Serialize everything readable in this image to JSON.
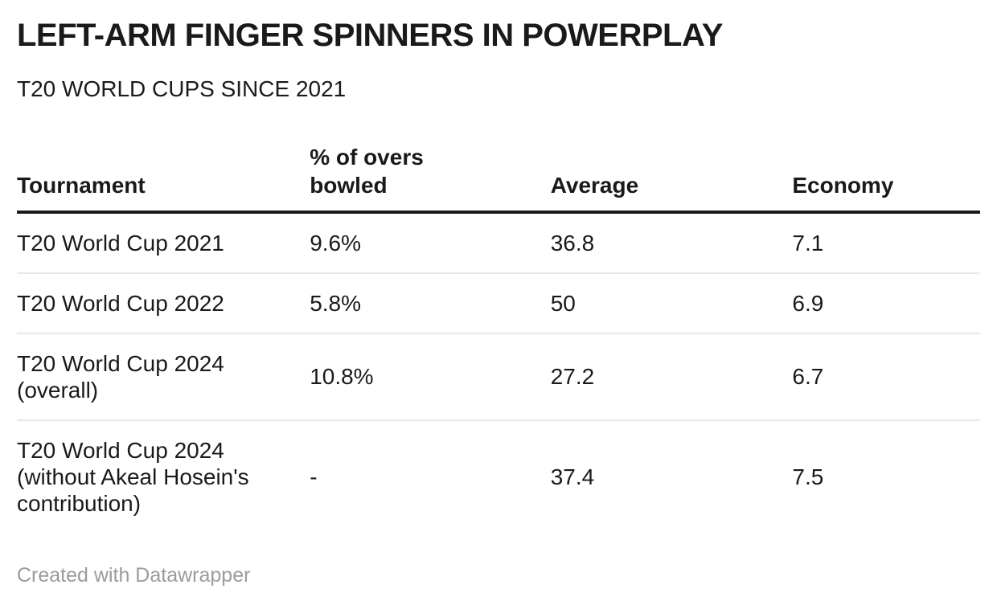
{
  "header": {
    "title": "LEFT-ARM FINGER SPINNERS IN POWERPLAY",
    "subtitle": "T20 WORLD CUPS SINCE 2021"
  },
  "chart_data": {
    "type": "table",
    "title": "LEFT-ARM FINGER SPINNERS IN POWERPLAY",
    "subtitle": "T20 WORLD CUPS SINCE 2021",
    "columns": [
      "Tournament",
      "% of overs bowled",
      "Average",
      "Economy"
    ],
    "rows": [
      [
        "T20 World Cup 2021",
        "9.6%",
        36.8,
        7.1
      ],
      [
        "T20 World Cup 2022",
        "5.8%",
        50,
        6.9
      ],
      [
        "T20 World Cup 2024 (overall)",
        "10.8%",
        27.2,
        6.7
      ],
      [
        "T20 World Cup 2024 (without Akeal Hosein's contribution)",
        "-",
        37.4,
        7.5
      ]
    ],
    "legend_position": "none",
    "grid": "horizontal-row-dividers"
  },
  "display": {
    "columns": [
      "Tournament",
      "% of overs\nbowled",
      "Average",
      "Economy"
    ],
    "rows": [
      [
        "T20 World Cup 2021",
        "9.6%",
        "36.8",
        "7.1"
      ],
      [
        "T20 World Cup 2022",
        "5.8%",
        "50",
        "6.9"
      ],
      [
        "T20 World Cup 2024\n(overall)",
        "10.8%",
        "27.2",
        "6.7"
      ],
      [
        "T20 World Cup 2024\n(without Akeal Hosein's\ncontribution)",
        "-",
        "37.4",
        "7.5"
      ]
    ],
    "column_widths_pct": [
      30.4,
      25.0,
      25.1,
      19.5
    ]
  },
  "footer": {
    "credit": "Created with Datawrapper"
  },
  "colors": {
    "text": "#1a1a1a",
    "header_rule": "#1a1a1a",
    "row_divider": "#e8e8e8",
    "credit_text": "#9b9b9b",
    "background": "#ffffff"
  }
}
